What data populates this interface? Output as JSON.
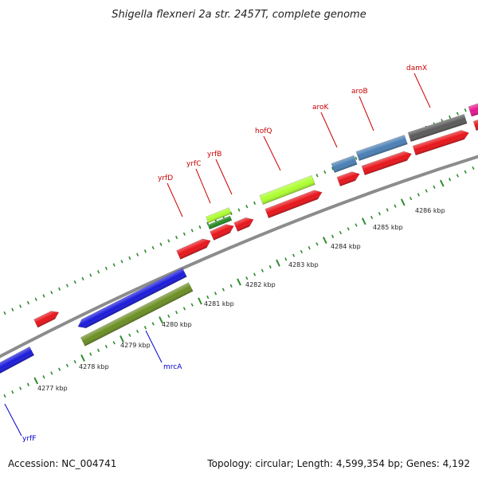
{
  "title": "Shigella flexneri 2a str. 2457T, complete genome",
  "footer": {
    "accession": "Accession: NC_004741",
    "summary": "Topology: circular; Length: 4,599,354 bp; Genes: 4,192"
  },
  "colors": {
    "backbone": "#8c8c8c",
    "tick": "#2e8b2e",
    "red_gene": "#e8141a",
    "blue_gene": "#1a1adb",
    "olive_gene": "#6b8e23",
    "steel_gene": "#4a7fb5",
    "gray_gene": "#5a5a5a",
    "lime_gene": "#adff2f",
    "green_gene": "#228b22",
    "magenta_gene": "#e8158f",
    "label_red": "#cc0000",
    "label_blue": "#0000cc"
  },
  "tick_labels": [
    "4277 kbp",
    "4278 kbp",
    "4279 kbp",
    "4280 kbp",
    "4281 kbp",
    "4282 kbp",
    "4283 kbp",
    "4284 kbp",
    "4285 kbp",
    "4286 kbp"
  ],
  "gene_labels": [
    {
      "name": "yrfD",
      "color": "label_red"
    },
    {
      "name": "yrfC",
      "color": "label_red"
    },
    {
      "name": "yrfB",
      "color": "label_red"
    },
    {
      "name": "hofQ",
      "color": "label_red"
    },
    {
      "name": "aroK",
      "color": "label_red"
    },
    {
      "name": "aroB",
      "color": "label_red"
    },
    {
      "name": "damX",
      "color": "label_red"
    },
    {
      "name": "mrcA",
      "color": "label_blue"
    },
    {
      "name": "yrfF",
      "color": "label_blue"
    }
  ]
}
